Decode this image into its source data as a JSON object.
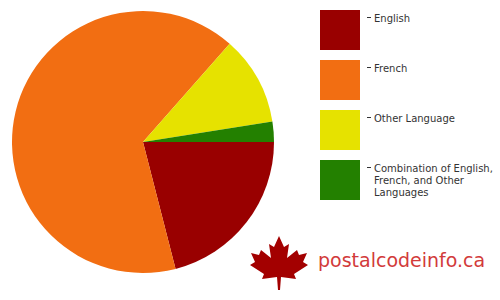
{
  "chart_data": {
    "type": "pie",
    "categories": [
      "English",
      "French",
      "Other Language",
      "Combination of English, French, and Other Languages"
    ],
    "values": [
      21,
      65.5,
      11,
      2.5
    ],
    "colors": [
      "#990000",
      "#f26e12",
      "#e6e200",
      "#238000"
    ],
    "legend": "right",
    "data_labels": false,
    "annotations": [
      "postalcodeinfo.ca"
    ]
  }
}
